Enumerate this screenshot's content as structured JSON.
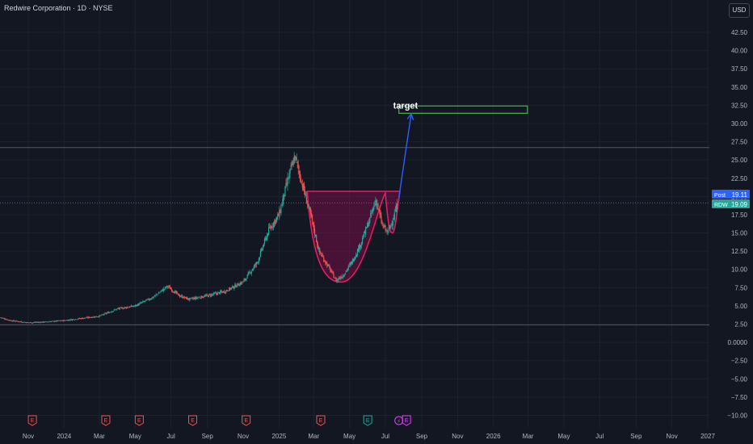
{
  "header": {
    "title": "Redwire Corporation · 1D · NYSE",
    "currency": "USD"
  },
  "colors": {
    "background": "#131722",
    "grid": "#1e222d",
    "axis_text": "#b2b5be",
    "candle_up": "#26a69a",
    "candle_down": "#ef5350",
    "price_line": "#2962ff",
    "target_box": "#4caf50",
    "arrow": "#2962ff",
    "pattern_fill": "#880e4f",
    "pattern_stroke": "#e91e63",
    "hline": "#787b86"
  },
  "chart_data": {
    "type": "candlestick",
    "x_axis": {
      "ticks": [
        {
          "label": "Nov",
          "date": "2023-11-01"
        },
        {
          "label": "2024",
          "date": "2024-01-01"
        },
        {
          "label": "Mar",
          "date": "2024-03-01"
        },
        {
          "label": "May",
          "date": "2024-05-01"
        },
        {
          "label": "Jul",
          "date": "2024-07-01"
        },
        {
          "label": "Sep",
          "date": "2024-09-01"
        },
        {
          "label": "Nov",
          "date": "2024-11-01"
        },
        {
          "label": "2025",
          "date": "2025-01-01"
        },
        {
          "label": "Mar",
          "date": "2025-03-01"
        },
        {
          "label": "May",
          "date": "2025-05-01"
        },
        {
          "label": "Jul",
          "date": "2025-07-01"
        },
        {
          "label": "Sep",
          "date": "2025-09-01"
        },
        {
          "label": "Nov",
          "date": "2025-11-01"
        },
        {
          "label": "2026",
          "date": "2026-01-01"
        },
        {
          "label": "Mar",
          "date": "2026-03-01"
        },
        {
          "label": "May",
          "date": "2026-05-01"
        },
        {
          "label": "Jul",
          "date": "2026-07-01"
        },
        {
          "label": "Sep",
          "date": "2026-09-01"
        },
        {
          "label": "Nov",
          "date": "2026-11-01"
        },
        {
          "label": "2027",
          "date": "2027-01-01"
        }
      ]
    },
    "y_axis": {
      "range": [
        -10,
        46
      ],
      "ticks": [
        "42.50",
        "40.00",
        "37.50",
        "35.00",
        "32.50",
        "30.00",
        "27.50",
        "25.00",
        "22.50",
        "20.00",
        "17.50",
        "15.00",
        "12.50",
        "10.00",
        "7.50",
        "5.00",
        "2.50",
        "0.0000",
        "−2.50",
        "−5.00",
        "−7.50",
        "−10.00"
      ],
      "tick_values": [
        42.5,
        40,
        37.5,
        35,
        32.5,
        30,
        27.5,
        25,
        22.5,
        20,
        17.5,
        15,
        12.5,
        10,
        7.5,
        5,
        2.5,
        0,
        -2.5,
        -5,
        -7.5,
        -10
      ]
    },
    "price_trend": [
      {
        "date": "2023-09-15",
        "close": 3.4
      },
      {
        "date": "2023-10-01",
        "close": 3.0
      },
      {
        "date": "2023-11-01",
        "close": 2.7
      },
      {
        "date": "2023-12-01",
        "close": 2.8
      },
      {
        "date": "2024-01-01",
        "close": 3.0
      },
      {
        "date": "2024-02-01",
        "close": 3.3
      },
      {
        "date": "2024-03-01",
        "close": 3.6
      },
      {
        "date": "2024-04-01",
        "close": 4.6
      },
      {
        "date": "2024-05-01",
        "close": 5.0
      },
      {
        "date": "2024-06-01",
        "close": 6.2
      },
      {
        "date": "2024-06-25",
        "close": 7.7
      },
      {
        "date": "2024-07-15",
        "close": 6.4
      },
      {
        "date": "2024-08-01",
        "close": 5.9
      },
      {
        "date": "2024-09-01",
        "close": 6.4
      },
      {
        "date": "2024-10-01",
        "close": 7.0
      },
      {
        "date": "2024-11-01",
        "close": 8.3
      },
      {
        "date": "2024-11-25",
        "close": 11.0
      },
      {
        "date": "2024-12-15",
        "close": 15.5
      },
      {
        "date": "2025-01-01",
        "close": 17.5
      },
      {
        "date": "2025-01-15",
        "close": 22.0
      },
      {
        "date": "2025-01-28",
        "close": 25.5
      },
      {
        "date": "2025-02-10",
        "close": 21.5
      },
      {
        "date": "2025-02-25",
        "close": 17.0
      },
      {
        "date": "2025-03-10",
        "close": 12.5
      },
      {
        "date": "2025-03-25",
        "close": 10.5
      },
      {
        "date": "2025-04-08",
        "close": 8.5
      },
      {
        "date": "2025-04-20",
        "close": 9.2
      },
      {
        "date": "2025-05-05",
        "close": 11.0
      },
      {
        "date": "2025-05-20",
        "close": 13.5
      },
      {
        "date": "2025-06-05",
        "close": 17.0
      },
      {
        "date": "2025-06-15",
        "close": 19.6
      },
      {
        "date": "2025-06-25",
        "close": 16.2
      },
      {
        "date": "2025-07-05",
        "close": 15.0
      },
      {
        "date": "2025-07-15",
        "close": 17.2
      },
      {
        "date": "2025-07-22",
        "close": 19.1
      }
    ],
    "horizontal_lines": [
      26.7,
      2.4
    ],
    "earnings_markers": [
      {
        "date": "2023-11-08",
        "label": "E",
        "kind": "earnings-past"
      },
      {
        "date": "2024-03-12",
        "label": "E",
        "kind": "earnings-past"
      },
      {
        "date": "2024-05-08",
        "label": "E",
        "kind": "earnings-past"
      },
      {
        "date": "2024-08-07",
        "label": "E",
        "kind": "earnings-past"
      },
      {
        "date": "2024-11-06",
        "label": "E",
        "kind": "earnings-past"
      },
      {
        "date": "2025-03-13",
        "label": "E",
        "kind": "earnings-past"
      },
      {
        "date": "2025-06-01",
        "label": "E",
        "kind": "earnings-next"
      },
      {
        "date": "2025-07-24",
        "label": "⚡",
        "kind": "event"
      },
      {
        "date": "2025-08-06",
        "label": "E",
        "kind": "earnings-future"
      }
    ],
    "annotations": {
      "target_label": "target",
      "target_zone": {
        "start": "2025-07-24",
        "end": "2026-02-28",
        "low": 31.4,
        "high": 32.4
      },
      "arrow": {
        "from_date": "2025-07-24",
        "from_price": 19.8,
        "to_date": "2025-08-14",
        "to_price": 31.3
      },
      "cup_and_handle": {
        "rim_price": 20.7,
        "cup_start": "2025-02-18",
        "cup_bottom_date": "2025-04-20",
        "cup_bottom": 8.3,
        "handle_start": "2025-07-01",
        "handle_end": "2025-07-26",
        "handle_bottom": 15.0
      }
    },
    "price_labels": [
      {
        "tag": "Post",
        "value": "19.11",
        "price": 19.11,
        "color": "#2962ff"
      },
      {
        "tag": "RDW",
        "value": "19.09",
        "price": 19.09,
        "color": "#26a69a"
      }
    ]
  }
}
